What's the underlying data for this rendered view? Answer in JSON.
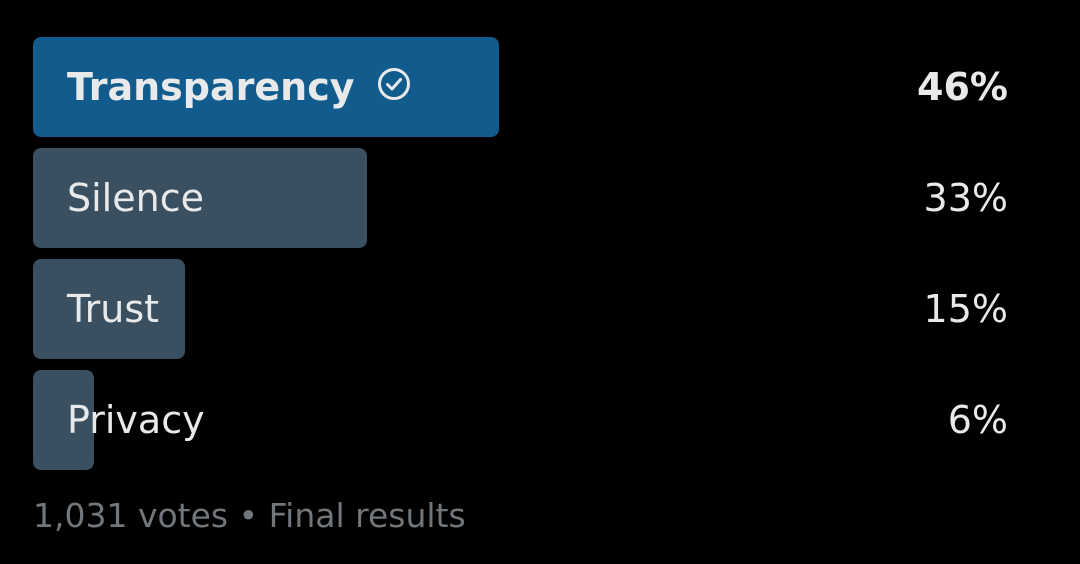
{
  "poll": {
    "options": [
      {
        "label": "Transparency",
        "percent_text": "46%",
        "percent": 46,
        "winner": true
      },
      {
        "label": "Silence",
        "percent_text": "33%",
        "percent": 33,
        "winner": false
      },
      {
        "label": "Trust",
        "percent_text": "15%",
        "percent": 15,
        "winner": false
      },
      {
        "label": "Privacy",
        "percent_text": "6%",
        "percent": 6,
        "winner": false
      }
    ],
    "votes": "1,031 votes",
    "separator": "•",
    "status": "Final results"
  },
  "colors": {
    "background": "#000000",
    "winner_bar": "#125b8d",
    "bar": "#3a5061",
    "text": "#e7e9ea",
    "muted_text": "#71767b"
  },
  "icons": {
    "winner_marker": "check-circle-icon"
  }
}
